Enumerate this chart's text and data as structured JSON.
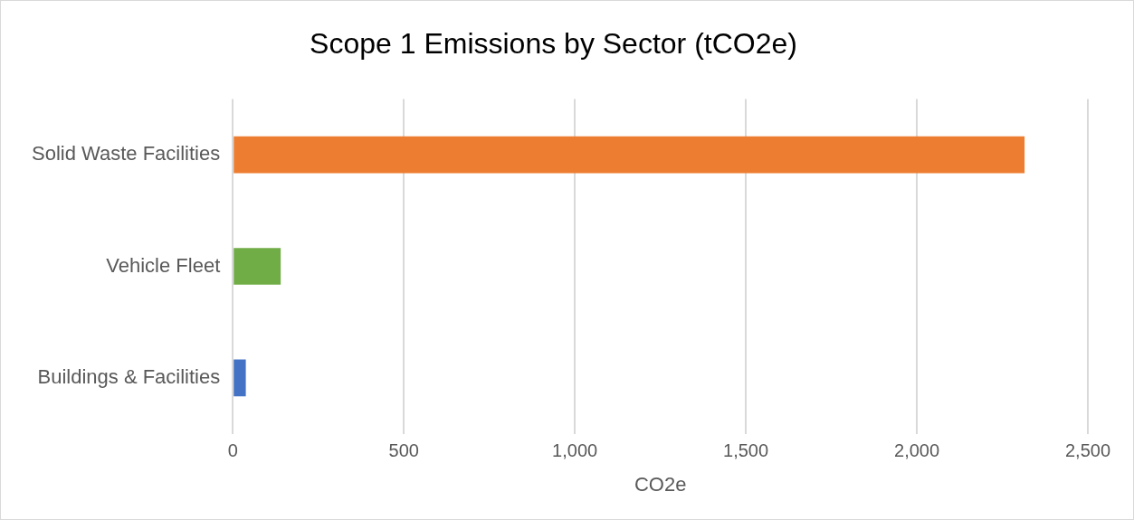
{
  "chart_data": {
    "type": "bar",
    "orientation": "horizontal",
    "title": "Scope 1 Emissions by Sector (tCO2e)",
    "xlabel": "CO2e",
    "categories": [
      "Solid Waste Facilities",
      "Vehicle Fleet",
      "Buildings & Facilities"
    ],
    "values": [
      2315,
      140,
      38
    ],
    "colors": [
      "#ed7d31",
      "#70ad47",
      "#4472c4"
    ],
    "xlim": [
      0,
      2500
    ],
    "xticks": [
      0,
      {
        "value": 500,
        "label": "500"
      },
      {
        "value": 1000,
        "label": "1,000"
      },
      {
        "value": 1500,
        "label": "1,500"
      },
      {
        "value": 2000,
        "label": "2,000"
      },
      {
        "value": 2500,
        "label": "2,500"
      }
    ],
    "grid": "x",
    "legend": false
  }
}
